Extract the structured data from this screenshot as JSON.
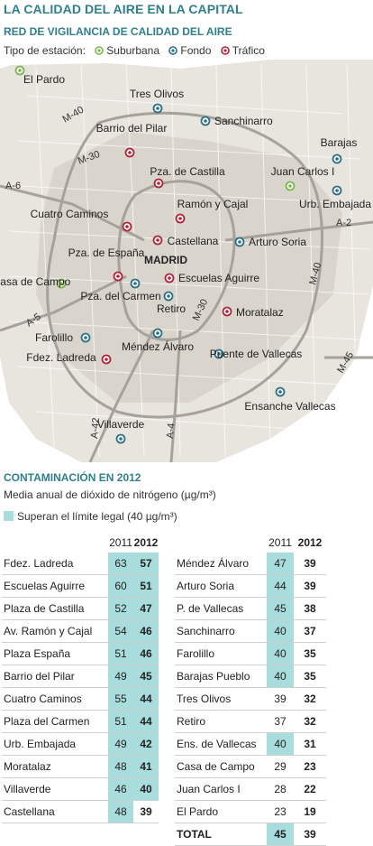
{
  "title": "LA CALIDAD DEL AIRE EN LA CAPITAL",
  "subtitle": "RED DE VIGILANCIA DE CALIDAD DEL AIRE",
  "legend": {
    "label": "Tipo de estación:",
    "items": [
      {
        "label": "Suburbana",
        "color": "#7ab648",
        "icon": "suburban-station-icon"
      },
      {
        "label": "Fondo",
        "color": "#2b6f88",
        "icon": "background-station-icon"
      },
      {
        "label": "Tráfico",
        "color": "#b2243a",
        "icon": "traffic-station-icon"
      }
    ]
  },
  "map": {
    "city": "MADRID",
    "stations": [
      {
        "name": "El Pardo",
        "type": "suburban"
      },
      {
        "name": "Tres Olivos",
        "type": "background"
      },
      {
        "name": "Sanchinarro",
        "type": "background"
      },
      {
        "name": "Barrio del Pilar",
        "type": "traffic"
      },
      {
        "name": "Barajas",
        "type": "background"
      },
      {
        "name": "Pza. de Castilla",
        "type": "traffic"
      },
      {
        "name": "Juan Carlos I",
        "type": "suburban"
      },
      {
        "name": "Urb. Embajada",
        "type": "background"
      },
      {
        "name": "Ramón y Cajal",
        "type": "traffic"
      },
      {
        "name": "Cuatro Caminos",
        "type": "traffic"
      },
      {
        "name": "Castellana",
        "type": "traffic"
      },
      {
        "name": "Arturo Soria",
        "type": "background"
      },
      {
        "name": "Pza. de España",
        "type": "traffic"
      },
      {
        "name": "Escuelas Aguirre",
        "type": "traffic"
      },
      {
        "name": "Casa de Campo",
        "type": "suburban"
      },
      {
        "name": "Pza. del Carmen",
        "type": "background"
      },
      {
        "name": "Retiro",
        "type": "background"
      },
      {
        "name": "Moratalaz",
        "type": "traffic"
      },
      {
        "name": "Farolillo",
        "type": "background"
      },
      {
        "name": "Méndez Álvaro",
        "type": "background"
      },
      {
        "name": "Fdez. Ladreda",
        "type": "traffic"
      },
      {
        "name": "Puente de Vallecas",
        "type": "background"
      },
      {
        "name": "Ensanche Vallecas",
        "type": "background"
      },
      {
        "name": "Villaverde",
        "type": "background"
      }
    ],
    "roads": [
      "M-40",
      "M-30",
      "A-6",
      "A-2",
      "M-40",
      "A-5",
      "M-30",
      "M-45",
      "A-42",
      "A-4"
    ]
  },
  "section": {
    "title": "CONTAMINACIÓN EN 2012",
    "subtitle": "Media anual de dióxido de nitrógeno (µg/m³)",
    "legend": "Superan el límite legal (40 µg/m³)"
  },
  "table_headers": {
    "y2011": "2011",
    "y2012": "2012"
  },
  "table_left": [
    {
      "name": "Fdez. Ladreda",
      "v2011": 63,
      "v2012": 57,
      "hl2011": true,
      "hl2012": true
    },
    {
      "name": "Escuelas Aguirre",
      "v2011": 60,
      "v2012": 51,
      "hl2011": true,
      "hl2012": true
    },
    {
      "name": "Plaza de Castilla",
      "v2011": 52,
      "v2012": 47,
      "hl2011": true,
      "hl2012": true
    },
    {
      "name": "Av. Ramón y Cajal",
      "v2011": 54,
      "v2012": 46,
      "hl2011": true,
      "hl2012": true
    },
    {
      "name": "Plaza España",
      "v2011": 51,
      "v2012": 46,
      "hl2011": true,
      "hl2012": true
    },
    {
      "name": "Barrio del Pilar",
      "v2011": 49,
      "v2012": 45,
      "hl2011": true,
      "hl2012": true
    },
    {
      "name": "Cuatro Caminos",
      "v2011": 55,
      "v2012": 44,
      "hl2011": true,
      "hl2012": true
    },
    {
      "name": "Plaza del Carmen",
      "v2011": 51,
      "v2012": 44,
      "hl2011": true,
      "hl2012": true
    },
    {
      "name": "Urb. Embajada",
      "v2011": 49,
      "v2012": 42,
      "hl2011": true,
      "hl2012": true
    },
    {
      "name": "Moratalaz",
      "v2011": 48,
      "v2012": 41,
      "hl2011": true,
      "hl2012": true
    },
    {
      "name": "Villaverde",
      "v2011": 46,
      "v2012": 40,
      "hl2011": true,
      "hl2012": true
    },
    {
      "name": "Castellana",
      "v2011": 48,
      "v2012": 39,
      "hl2011": true,
      "hl2012": false
    }
  ],
  "table_right": [
    {
      "name": "Méndez Álvaro",
      "v2011": 47,
      "v2012": 39,
      "hl2011": true,
      "hl2012": false
    },
    {
      "name": "Arturo Soria",
      "v2011": 44,
      "v2012": 39,
      "hl2011": true,
      "hl2012": false
    },
    {
      "name": "P. de Vallecas",
      "v2011": 45,
      "v2012": 38,
      "hl2011": true,
      "hl2012": false
    },
    {
      "name": "Sanchinarro",
      "v2011": 40,
      "v2012": 37,
      "hl2011": true,
      "hl2012": false
    },
    {
      "name": "Farolillo",
      "v2011": 40,
      "v2012": 35,
      "hl2011": true,
      "hl2012": false
    },
    {
      "name": "Barajas Pueblo",
      "v2011": 40,
      "v2012": 35,
      "hl2011": true,
      "hl2012": false
    },
    {
      "name": "Tres Olivos",
      "v2011": 39,
      "v2012": 32,
      "hl2011": false,
      "hl2012": false
    },
    {
      "name": "Retiro",
      "v2011": 37,
      "v2012": 32,
      "hl2011": false,
      "hl2012": false
    },
    {
      "name": "Ens. de Vallecas",
      "v2011": 40,
      "v2012": 31,
      "hl2011": true,
      "hl2012": false
    },
    {
      "name": "Casa de Campo",
      "v2011": 29,
      "v2012": 23,
      "hl2011": false,
      "hl2012": false
    },
    {
      "name": "Juan Carlos I",
      "v2011": 28,
      "v2012": 22,
      "hl2011": false,
      "hl2012": false
    },
    {
      "name": "El Pardo",
      "v2011": 23,
      "v2012": 19,
      "hl2011": false,
      "hl2012": false
    },
    {
      "name": "TOTAL",
      "v2011": 45,
      "v2012": 39,
      "hl2011": true,
      "hl2012": false,
      "total": true
    }
  ]
}
